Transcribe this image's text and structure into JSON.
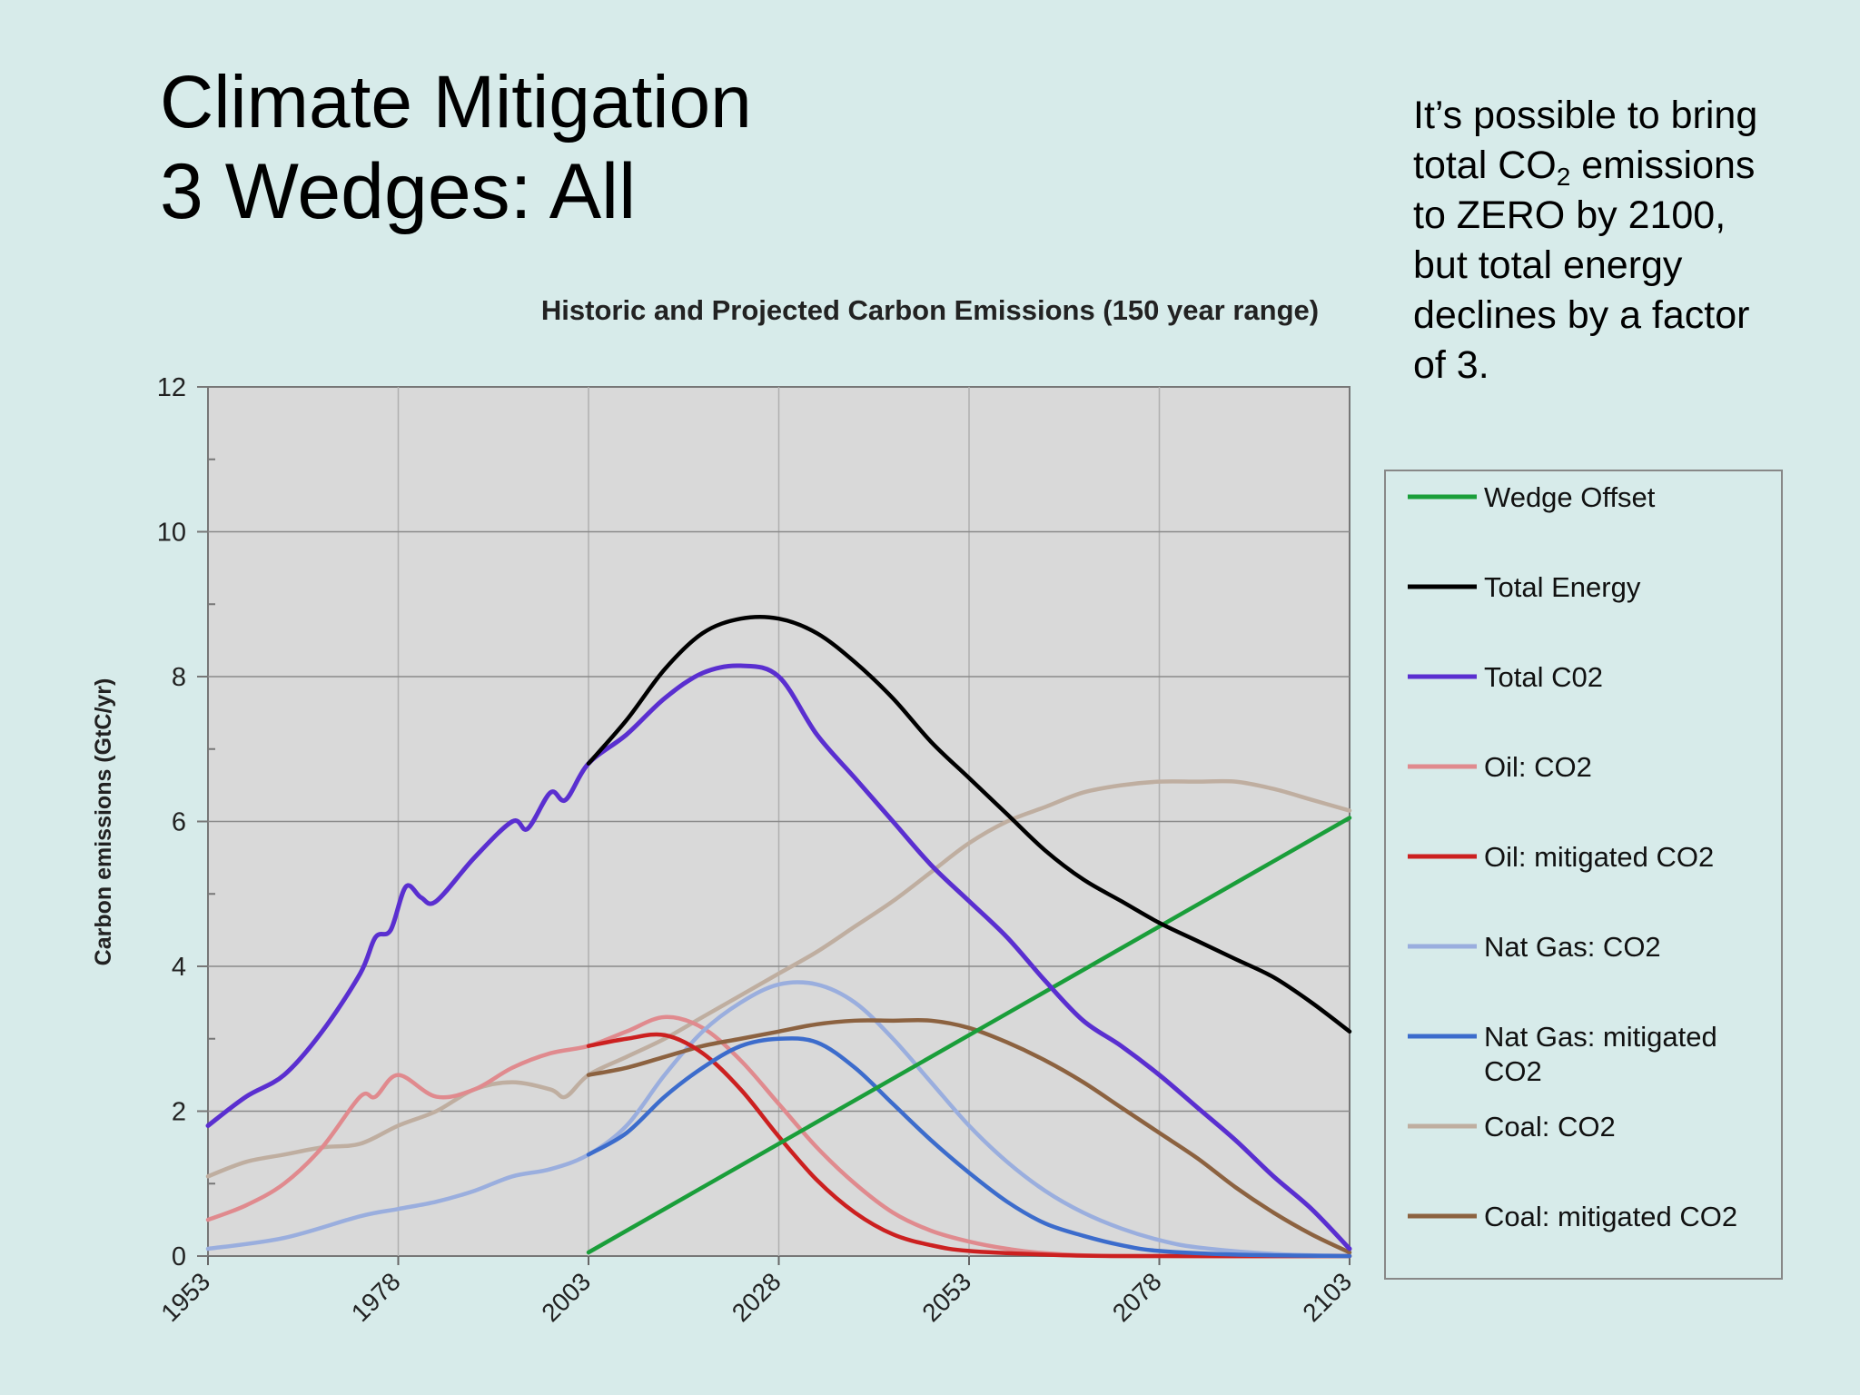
{
  "slide": {
    "title_line1": "Climate Mitigation",
    "title_line2": "3 Wedges: All",
    "side_text": {
      "line1": "It’s possible to bring",
      "line2_pre": "total CO",
      "line2_sub": "2",
      "line2_post": " emissions",
      "line3": "to ZERO by 2100,",
      "line4": "but total energy",
      "line5": "declines by a factor",
      "line6": "of 3."
    }
  },
  "chart_data": {
    "type": "line",
    "title": "Historic and Projected Carbon Emissions (150 year range)",
    "xlabel": "",
    "ylabel": "Carbon emissions (GtC/yr)",
    "xlim": [
      1953,
      2103
    ],
    "ylim": [
      0,
      12
    ],
    "x_ticks": [
      "1953",
      "1978",
      "2003",
      "2028",
      "2053",
      "2078",
      "2103"
    ],
    "y_ticks": [
      "0",
      "2",
      "4",
      "6",
      "8",
      "10",
      "12"
    ],
    "grid": true,
    "plot_background": "#d9d9d9",
    "legend_position": "right",
    "series": [
      {
        "name": "Wedge Offset",
        "color": "#1a9e3a",
        "x": [
          2003,
          2103
        ],
        "y": [
          0.05,
          6.05
        ]
      },
      {
        "name": "Total Energy",
        "color": "#000000",
        "x": [
          2003,
          2008,
          2013,
          2018,
          2023,
          2028,
          2033,
          2038,
          2043,
          2048,
          2053,
          2058,
          2063,
          2068,
          2073,
          2078,
          2083,
          2088,
          2093,
          2098,
          2103
        ],
        "y": [
          6.8,
          7.4,
          8.1,
          8.6,
          8.8,
          8.8,
          8.6,
          8.2,
          7.7,
          7.1,
          6.6,
          6.1,
          5.6,
          5.2,
          4.9,
          4.6,
          4.35,
          4.1,
          3.85,
          3.5,
          3.1
        ]
      },
      {
        "name": "Total C02",
        "color": "#5a2fd0",
        "x": [
          1953,
          1958,
          1963,
          1968,
          1973,
          1975,
          1977,
          1979,
          1981,
          1983,
          1988,
          1993,
          1995,
          1998,
          2000,
          2003,
          2008,
          2013,
          2018,
          2023,
          2028,
          2033,
          2038,
          2043,
          2048,
          2053,
          2058,
          2063,
          2068,
          2073,
          2078,
          2083,
          2088,
          2093,
          2098,
          2103
        ],
        "y": [
          1.8,
          2.2,
          2.5,
          3.1,
          3.9,
          4.4,
          4.5,
          5.1,
          4.95,
          4.9,
          5.5,
          6.0,
          5.9,
          6.4,
          6.3,
          6.8,
          7.2,
          7.7,
          8.05,
          8.15,
          8.0,
          7.2,
          6.6,
          6.0,
          5.4,
          4.9,
          4.4,
          3.8,
          3.25,
          2.9,
          2.5,
          2.05,
          1.6,
          1.1,
          0.65,
          0.1
        ]
      },
      {
        "name": "Oil: CO2",
        "color": "#e08a8e",
        "x": [
          1953,
          1958,
          1963,
          1968,
          1973,
          1975,
          1978,
          1983,
          1988,
          1993,
          1998,
          2003,
          2008,
          2013,
          2018,
          2023,
          2028,
          2033,
          2038,
          2043,
          2048,
          2053,
          2058,
          2063,
          2073,
          2103
        ],
        "y": [
          0.5,
          0.7,
          1.0,
          1.5,
          2.2,
          2.2,
          2.5,
          2.2,
          2.3,
          2.6,
          2.8,
          2.9,
          3.1,
          3.3,
          3.15,
          2.7,
          2.1,
          1.5,
          1.0,
          0.6,
          0.35,
          0.2,
          0.1,
          0.04,
          0.0,
          0.0
        ]
      },
      {
        "name": "Oil: mitigated CO2",
        "color": "#cc2020",
        "x": [
          2003,
          2008,
          2013,
          2018,
          2023,
          2028,
          2033,
          2038,
          2043,
          2048,
          2053,
          2063,
          2073,
          2103
        ],
        "y": [
          2.9,
          3.0,
          3.05,
          2.8,
          2.3,
          1.65,
          1.05,
          0.6,
          0.3,
          0.15,
          0.07,
          0.02,
          0.0,
          0.0
        ]
      },
      {
        "name": "Nat Gas: CO2",
        "color": "#9aaede",
        "x": [
          1953,
          1963,
          1973,
          1978,
          1983,
          1988,
          1993,
          1998,
          2003,
          2008,
          2013,
          2018,
          2023,
          2028,
          2033,
          2038,
          2043,
          2048,
          2053,
          2058,
          2063,
          2068,
          2073,
          2078,
          2083,
          2093,
          2103
        ],
        "y": [
          0.1,
          0.25,
          0.55,
          0.65,
          0.75,
          0.9,
          1.1,
          1.2,
          1.4,
          1.8,
          2.5,
          3.1,
          3.5,
          3.75,
          3.75,
          3.5,
          3.0,
          2.4,
          1.8,
          1.3,
          0.9,
          0.6,
          0.38,
          0.22,
          0.12,
          0.03,
          0.0
        ]
      },
      {
        "name": "Nat Gas: mitigated CO2",
        "color": "#3c6ccc",
        "x": [
          2003,
          2008,
          2013,
          2018,
          2023,
          2028,
          2033,
          2038,
          2043,
          2048,
          2053,
          2058,
          2063,
          2068,
          2073,
          2078,
          2088,
          2103
        ],
        "y": [
          1.4,
          1.7,
          2.2,
          2.6,
          2.9,
          3.0,
          2.95,
          2.6,
          2.1,
          1.6,
          1.15,
          0.75,
          0.45,
          0.28,
          0.15,
          0.07,
          0.02,
          0.0
        ]
      },
      {
        "name": "Coal: CO2",
        "color": "#bfaea0",
        "x": [
          1953,
          1958,
          1963,
          1968,
          1973,
          1978,
          1983,
          1988,
          1993,
          1998,
          2000,
          2003,
          2008,
          2013,
          2018,
          2023,
          2028,
          2033,
          2038,
          2043,
          2048,
          2053,
          2058,
          2063,
          2068,
          2073,
          2078,
          2083,
          2088,
          2093,
          2098,
          2103
        ],
        "y": [
          1.1,
          1.3,
          1.4,
          1.5,
          1.55,
          1.8,
          2.0,
          2.3,
          2.4,
          2.3,
          2.2,
          2.5,
          2.75,
          3.0,
          3.3,
          3.6,
          3.9,
          4.2,
          4.55,
          4.9,
          5.3,
          5.7,
          6.0,
          6.2,
          6.4,
          6.5,
          6.55,
          6.55,
          6.55,
          6.45,
          6.3,
          6.15
        ]
      },
      {
        "name": "Coal: mitigated CO2",
        "color": "#8c6240",
        "x": [
          2003,
          2008,
          2013,
          2018,
          2023,
          2028,
          2033,
          2038,
          2043,
          2048,
          2053,
          2058,
          2063,
          2068,
          2073,
          2078,
          2083,
          2088,
          2093,
          2098,
          2103
        ],
        "y": [
          2.5,
          2.6,
          2.75,
          2.9,
          3.0,
          3.1,
          3.2,
          3.25,
          3.25,
          3.25,
          3.15,
          2.95,
          2.7,
          2.4,
          2.05,
          1.7,
          1.35,
          0.95,
          0.6,
          0.3,
          0.05
        ]
      }
    ],
    "legend_labels": [
      "Wedge Offset",
      "Total Energy",
      "Total C02",
      "Oil: CO2",
      "Oil: mitigated CO2",
      "Nat Gas: CO2",
      "Nat Gas: mitigated",
      "CO2",
      "Coal: CO2",
      "Coal: mitigated CO2"
    ]
  }
}
